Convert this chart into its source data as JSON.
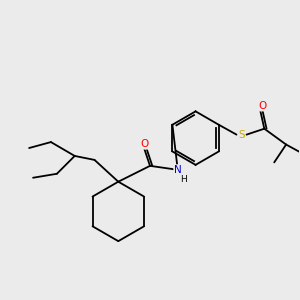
{
  "bg_color": "#ebebeb",
  "atom_colors": {
    "O": "#ff0000",
    "N": "#0000cc",
    "S": "#ccaa00",
    "C": "#000000",
    "H": "#000000"
  },
  "figsize": [
    3.0,
    3.0
  ],
  "dpi": 100
}
